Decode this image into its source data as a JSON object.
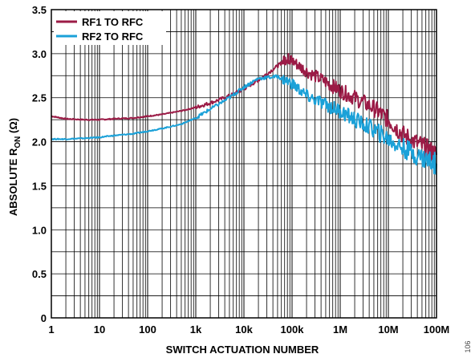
{
  "chart_data": {
    "type": "line",
    "xlabel": "SWITCH ACTUATION NUMBER",
    "ylabel_main": "ABSOLUTE R",
    "ylabel_sub": "ON",
    "ylabel_unit": " (Ω)",
    "xscale": "log",
    "xlim": [
      1,
      100000000
    ],
    "ylim": [
      0,
      3.5
    ],
    "grid": true,
    "legend_position": "top-left",
    "x_tick_labels": [
      "1",
      "10",
      "100",
      "1k",
      "10k",
      "100k",
      "1M",
      "10M",
      "100M"
    ],
    "y_tick_labels": [
      "0",
      "0.5",
      "1.0",
      "1.5",
      "2.0",
      "2.5",
      "3.0",
      "3.5"
    ],
    "figure_id": "106",
    "series": [
      {
        "name": "RF1 TO RFC",
        "color": "#9b1b46",
        "x": [
          1,
          2,
          5,
          10,
          20,
          50,
          100,
          200,
          500,
          1000,
          2000,
          5000,
          10000,
          20000,
          50000,
          80000,
          100000,
          200000,
          500000,
          1000000,
          2000000,
          5000000,
          10000000,
          20000000,
          50000000,
          100000000
        ],
        "y": [
          2.29,
          2.26,
          2.25,
          2.25,
          2.26,
          2.27,
          2.29,
          2.31,
          2.35,
          2.39,
          2.44,
          2.52,
          2.6,
          2.7,
          2.86,
          2.95,
          2.92,
          2.8,
          2.68,
          2.58,
          2.5,
          2.38,
          2.25,
          2.08,
          1.95,
          1.85
        ]
      },
      {
        "name": "RF2 TO RFC",
        "color": "#1ba1d8",
        "x": [
          1,
          2,
          5,
          10,
          20,
          50,
          100,
          200,
          500,
          1000,
          2000,
          5000,
          10000,
          20000,
          50000,
          100000,
          200000,
          500000,
          1000000,
          2000000,
          5000000,
          10000000,
          20000000,
          50000000,
          100000000
        ],
        "y": [
          2.03,
          2.03,
          2.04,
          2.05,
          2.07,
          2.09,
          2.12,
          2.15,
          2.2,
          2.27,
          2.37,
          2.5,
          2.62,
          2.72,
          2.74,
          2.66,
          2.52,
          2.42,
          2.35,
          2.25,
          2.14,
          2.03,
          1.93,
          1.82,
          1.75
        ]
      }
    ]
  }
}
